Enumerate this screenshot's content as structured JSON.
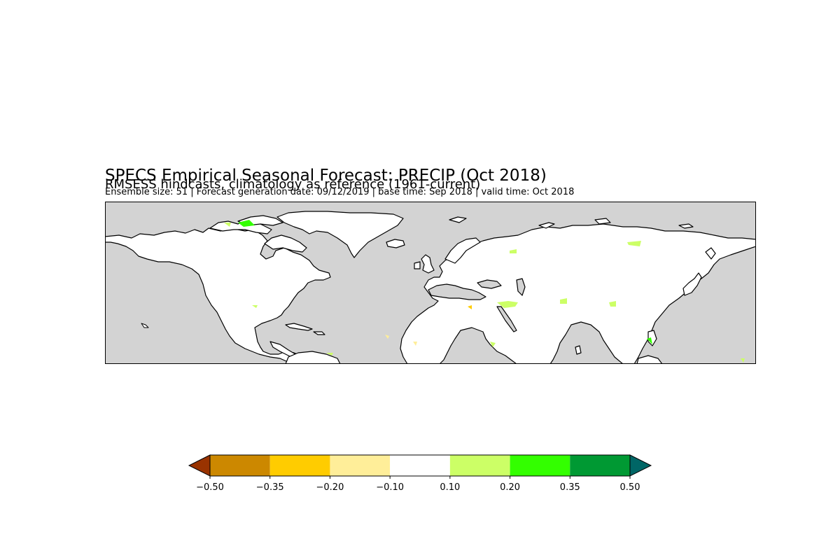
{
  "header": {
    "title": "SPECS Empirical Seasonal Forecast: PRECIP (Oct 2018)",
    "subtitle": "RMSESS hindcasts, climatology as reference (1961-current)",
    "info": "Ensemble size: 51 | Forecast generation date: 09/12/2019 | base time: Sep 2018 | valid time: Oct 2018"
  },
  "map": {
    "ocean_color": "#d3d3d3",
    "land_color": "#ffffff",
    "coast_color": "#000000"
  },
  "colorbar": {
    "ticks": [
      "−0.50",
      "−0.35",
      "−0.20",
      "−0.10",
      "0.10",
      "0.20",
      "0.35",
      "0.50"
    ],
    "bins": [
      {
        "from": -0.5,
        "to": -0.35,
        "color": "#cc8800"
      },
      {
        "from": -0.35,
        "to": -0.2,
        "color": "#ffcc00"
      },
      {
        "from": -0.2,
        "to": -0.1,
        "color": "#ffee99"
      },
      {
        "from": -0.1,
        "to": 0.1,
        "color": "#ffffff"
      },
      {
        "from": 0.1,
        "to": 0.2,
        "color": "#ccff66"
      },
      {
        "from": 0.2,
        "to": 0.35,
        "color": "#33ff00"
      },
      {
        "from": 0.35,
        "to": 0.5,
        "color": "#009933"
      }
    ],
    "under_color": "#993300",
    "over_color": "#006666"
  }
}
